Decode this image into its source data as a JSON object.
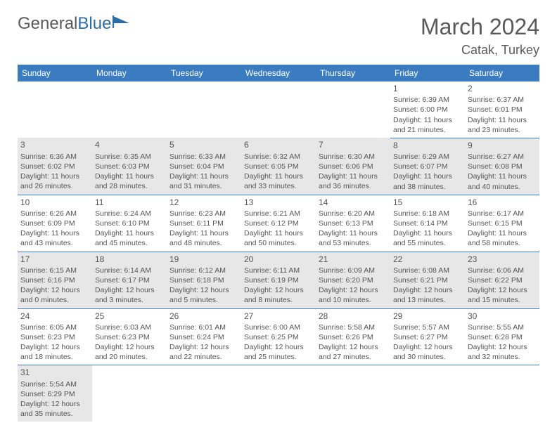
{
  "logo": {
    "word1": "General",
    "word2": "Blue"
  },
  "title": "March 2024",
  "location": "Catak, Turkey",
  "colors": {
    "headerBg": "#3b7bbf",
    "headerText": "#ffffff",
    "rowAlt": "#e7e7e7",
    "rule": "#3b7bbf"
  },
  "fonts": {
    "title_pt": 32,
    "location_pt": 18,
    "dayhead_pt": 12,
    "cell_pt": 10.5
  },
  "dayHeaders": [
    "Sunday",
    "Monday",
    "Tuesday",
    "Wednesday",
    "Thursday",
    "Friday",
    "Saturday"
  ],
  "weeks": [
    [
      null,
      null,
      null,
      null,
      null,
      {
        "n": "1",
        "sr": "Sunrise: 6:39 AM",
        "ss": "Sunset: 6:00 PM",
        "d1": "Daylight: 11 hours",
        "d2": "and 21 minutes."
      },
      {
        "n": "2",
        "sr": "Sunrise: 6:37 AM",
        "ss": "Sunset: 6:01 PM",
        "d1": "Daylight: 11 hours",
        "d2": "and 23 minutes."
      }
    ],
    [
      {
        "n": "3",
        "sr": "Sunrise: 6:36 AM",
        "ss": "Sunset: 6:02 PM",
        "d1": "Daylight: 11 hours",
        "d2": "and 26 minutes."
      },
      {
        "n": "4",
        "sr": "Sunrise: 6:35 AM",
        "ss": "Sunset: 6:03 PM",
        "d1": "Daylight: 11 hours",
        "d2": "and 28 minutes."
      },
      {
        "n": "5",
        "sr": "Sunrise: 6:33 AM",
        "ss": "Sunset: 6:04 PM",
        "d1": "Daylight: 11 hours",
        "d2": "and 31 minutes."
      },
      {
        "n": "6",
        "sr": "Sunrise: 6:32 AM",
        "ss": "Sunset: 6:05 PM",
        "d1": "Daylight: 11 hours",
        "d2": "and 33 minutes."
      },
      {
        "n": "7",
        "sr": "Sunrise: 6:30 AM",
        "ss": "Sunset: 6:06 PM",
        "d1": "Daylight: 11 hours",
        "d2": "and 36 minutes."
      },
      {
        "n": "8",
        "sr": "Sunrise: 6:29 AM",
        "ss": "Sunset: 6:07 PM",
        "d1": "Daylight: 11 hours",
        "d2": "and 38 minutes."
      },
      {
        "n": "9",
        "sr": "Sunrise: 6:27 AM",
        "ss": "Sunset: 6:08 PM",
        "d1": "Daylight: 11 hours",
        "d2": "and 40 minutes."
      }
    ],
    [
      {
        "n": "10",
        "sr": "Sunrise: 6:26 AM",
        "ss": "Sunset: 6:09 PM",
        "d1": "Daylight: 11 hours",
        "d2": "and 43 minutes."
      },
      {
        "n": "11",
        "sr": "Sunrise: 6:24 AM",
        "ss": "Sunset: 6:10 PM",
        "d1": "Daylight: 11 hours",
        "d2": "and 45 minutes."
      },
      {
        "n": "12",
        "sr": "Sunrise: 6:23 AM",
        "ss": "Sunset: 6:11 PM",
        "d1": "Daylight: 11 hours",
        "d2": "and 48 minutes."
      },
      {
        "n": "13",
        "sr": "Sunrise: 6:21 AM",
        "ss": "Sunset: 6:12 PM",
        "d1": "Daylight: 11 hours",
        "d2": "and 50 minutes."
      },
      {
        "n": "14",
        "sr": "Sunrise: 6:20 AM",
        "ss": "Sunset: 6:13 PM",
        "d1": "Daylight: 11 hours",
        "d2": "and 53 minutes."
      },
      {
        "n": "15",
        "sr": "Sunrise: 6:18 AM",
        "ss": "Sunset: 6:14 PM",
        "d1": "Daylight: 11 hours",
        "d2": "and 55 minutes."
      },
      {
        "n": "16",
        "sr": "Sunrise: 6:17 AM",
        "ss": "Sunset: 6:15 PM",
        "d1": "Daylight: 11 hours",
        "d2": "and 58 minutes."
      }
    ],
    [
      {
        "n": "17",
        "sr": "Sunrise: 6:15 AM",
        "ss": "Sunset: 6:16 PM",
        "d1": "Daylight: 12 hours",
        "d2": "and 0 minutes."
      },
      {
        "n": "18",
        "sr": "Sunrise: 6:14 AM",
        "ss": "Sunset: 6:17 PM",
        "d1": "Daylight: 12 hours",
        "d2": "and 3 minutes."
      },
      {
        "n": "19",
        "sr": "Sunrise: 6:12 AM",
        "ss": "Sunset: 6:18 PM",
        "d1": "Daylight: 12 hours",
        "d2": "and 5 minutes."
      },
      {
        "n": "20",
        "sr": "Sunrise: 6:11 AM",
        "ss": "Sunset: 6:19 PM",
        "d1": "Daylight: 12 hours",
        "d2": "and 8 minutes."
      },
      {
        "n": "21",
        "sr": "Sunrise: 6:09 AM",
        "ss": "Sunset: 6:20 PM",
        "d1": "Daylight: 12 hours",
        "d2": "and 10 minutes."
      },
      {
        "n": "22",
        "sr": "Sunrise: 6:08 AM",
        "ss": "Sunset: 6:21 PM",
        "d1": "Daylight: 12 hours",
        "d2": "and 13 minutes."
      },
      {
        "n": "23",
        "sr": "Sunrise: 6:06 AM",
        "ss": "Sunset: 6:22 PM",
        "d1": "Daylight: 12 hours",
        "d2": "and 15 minutes."
      }
    ],
    [
      {
        "n": "24",
        "sr": "Sunrise: 6:05 AM",
        "ss": "Sunset: 6:23 PM",
        "d1": "Daylight: 12 hours",
        "d2": "and 18 minutes."
      },
      {
        "n": "25",
        "sr": "Sunrise: 6:03 AM",
        "ss": "Sunset: 6:23 PM",
        "d1": "Daylight: 12 hours",
        "d2": "and 20 minutes."
      },
      {
        "n": "26",
        "sr": "Sunrise: 6:01 AM",
        "ss": "Sunset: 6:24 PM",
        "d1": "Daylight: 12 hours",
        "d2": "and 22 minutes."
      },
      {
        "n": "27",
        "sr": "Sunrise: 6:00 AM",
        "ss": "Sunset: 6:25 PM",
        "d1": "Daylight: 12 hours",
        "d2": "and 25 minutes."
      },
      {
        "n": "28",
        "sr": "Sunrise: 5:58 AM",
        "ss": "Sunset: 6:26 PM",
        "d1": "Daylight: 12 hours",
        "d2": "and 27 minutes."
      },
      {
        "n": "29",
        "sr": "Sunrise: 5:57 AM",
        "ss": "Sunset: 6:27 PM",
        "d1": "Daylight: 12 hours",
        "d2": "and 30 minutes."
      },
      {
        "n": "30",
        "sr": "Sunrise: 5:55 AM",
        "ss": "Sunset: 6:28 PM",
        "d1": "Daylight: 12 hours",
        "d2": "and 32 minutes."
      }
    ],
    [
      {
        "n": "31",
        "sr": "Sunrise: 5:54 AM",
        "ss": "Sunset: 6:29 PM",
        "d1": "Daylight: 12 hours",
        "d2": "and 35 minutes."
      },
      null,
      null,
      null,
      null,
      null,
      null
    ]
  ]
}
